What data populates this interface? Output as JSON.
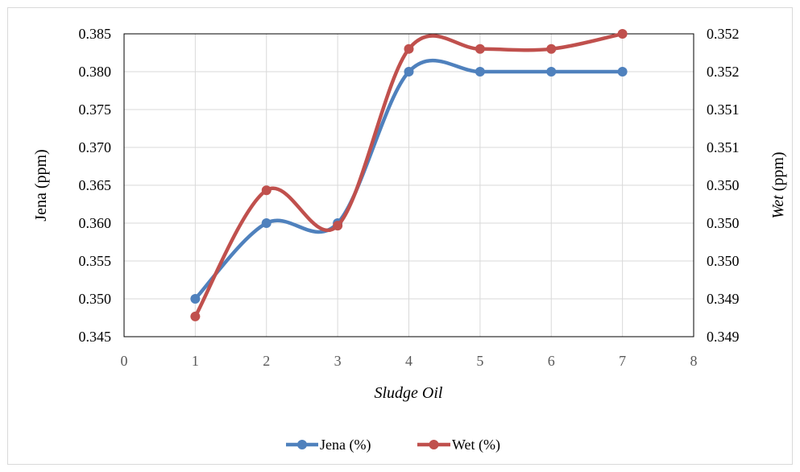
{
  "chart_data": {
    "type": "line",
    "smooth": true,
    "x": [
      1,
      2,
      3,
      4,
      5,
      6,
      7
    ],
    "xlabel": "Sludge Oil",
    "xlim": [
      0,
      8
    ],
    "xticks": [
      "0",
      "1",
      "2",
      "3",
      "4",
      "5",
      "6",
      "7",
      "8"
    ],
    "ylabel": "Jena (ppm)",
    "ylim": [
      0.345,
      0.385
    ],
    "yticks": [
      "0.345",
      "0.350",
      "0.355",
      "0.360",
      "0.365",
      "0.370",
      "0.375",
      "0.380",
      "0.385"
    ],
    "y2label": "Wet (ppm)",
    "y2label_italic_part": "Wet",
    "y2label_rest": " (ppm)",
    "y2lim": [
      0.349,
      0.352
    ],
    "y2ticks": [
      "0.349",
      "0.349",
      "0.350",
      "0.350",
      "0.350",
      "0.351",
      "0.351",
      "0.352",
      "0.352"
    ],
    "grid": true,
    "legend_position": "bottom",
    "series": [
      {
        "name": "Jena (%)",
        "axis": "left",
        "color": "#4F81BD",
        "values": [
          0.35,
          0.36,
          0.36,
          0.38,
          0.38,
          0.38,
          0.38
        ]
      },
      {
        "name": "Wet (%)",
        "axis": "right",
        "color": "#C0504D",
        "values": [
          0.3492,
          0.35045,
          0.3501,
          0.35185,
          0.35185,
          0.35185,
          0.352
        ]
      }
    ]
  }
}
